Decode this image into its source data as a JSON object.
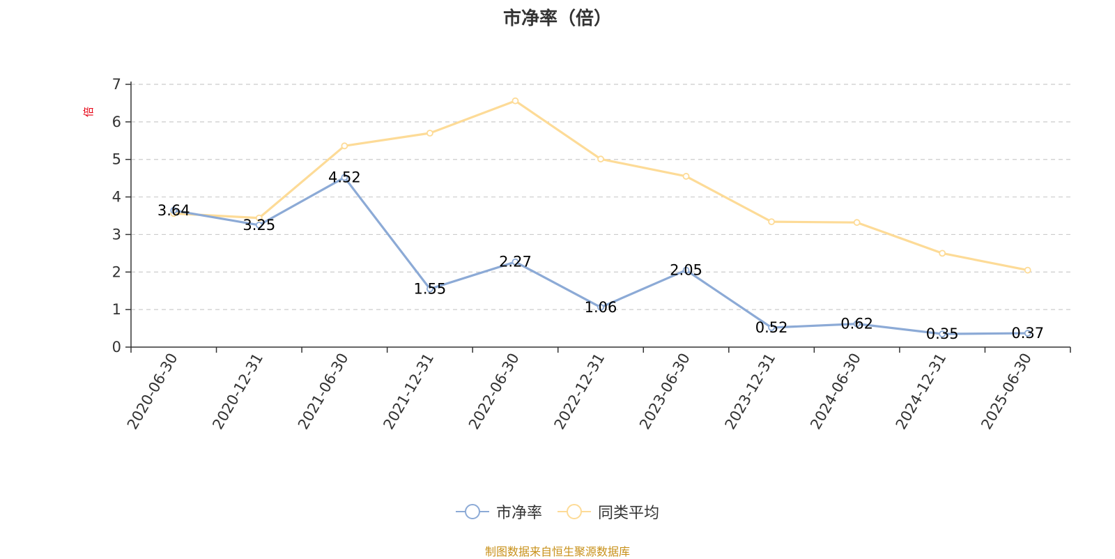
{
  "title": "市净率（倍）",
  "source_note": "制图数据来自恒生聚源数据库",
  "colors": {
    "series_pb": "#8caad6",
    "series_avg": "#fddb97",
    "grid": "#cccccc",
    "axis": "#333333",
    "unit": "#e60012",
    "source": "#c8911a"
  },
  "chart_data": {
    "type": "line",
    "title": "市净率（倍）",
    "ylabel": "倍",
    "ylim": [
      0,
      7
    ],
    "yticks": [
      0,
      1,
      2,
      3,
      4,
      5,
      6,
      7
    ],
    "grid": true,
    "legend_position": "bottom-center",
    "categories": [
      "2020-06-30",
      "2020-12-31",
      "2021-06-30",
      "2021-12-31",
      "2022-06-30",
      "2022-12-31",
      "2023-06-30",
      "2023-12-31",
      "2024-06-30",
      "2024-12-31",
      "2025-06-30"
    ],
    "series": [
      {
        "name": "市净率",
        "values": [
          3.64,
          3.25,
          4.52,
          1.55,
          2.27,
          1.06,
          2.05,
          0.52,
          0.62,
          0.35,
          0.37
        ],
        "data_labels": true
      },
      {
        "name": "同类平均",
        "values": [
          3.56,
          3.44,
          5.36,
          5.7,
          6.56,
          5.01,
          4.55,
          3.34,
          3.32,
          2.5,
          2.05
        ],
        "data_labels": false
      }
    ]
  }
}
